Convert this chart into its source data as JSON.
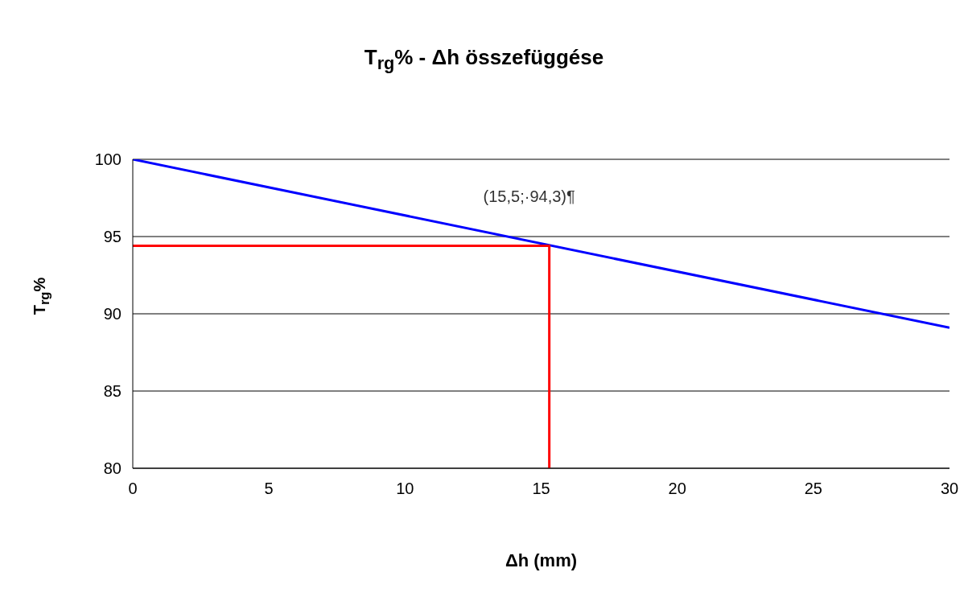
{
  "chart_data": {
    "type": "line",
    "title": "T$_{rg}$% - Δh összefüggése",
    "xlabel": "Δh (mm)",
    "ylabel": "T$_{rg}$%",
    "series": [
      {
        "color": "#0000ff",
        "x": [
          0,
          30
        ],
        "values": [
          100,
          89.1
        ]
      },
      {
        "color": "#ff0000",
        "x": [
          0,
          15.3,
          15.3
        ],
        "values": [
          94.4,
          94.4,
          80
        ]
      }
    ],
    "annotations": [
      {
        "text": "(15,5;·94,3)¶",
        "x": 15.3,
        "y": 94.4
      }
    ],
    "xlim": [
      0,
      30
    ],
    "xticks": [
      0,
      5,
      10,
      15,
      20,
      25,
      30
    ],
    "ylim": [
      80,
      100
    ],
    "yticks": [
      80,
      85,
      90,
      95,
      100
    ],
    "grid": "y",
    "legend": false,
    "marker": "none",
    "line_style": "solid"
  }
}
